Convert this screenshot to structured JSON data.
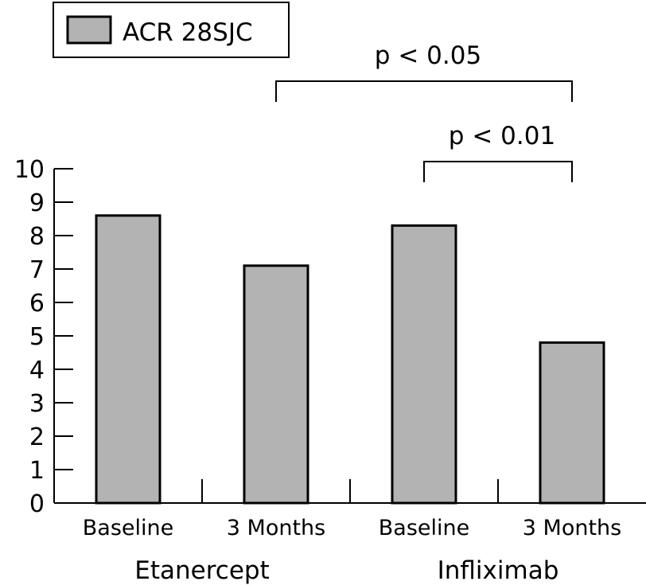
{
  "chart_data": {
    "type": "bar",
    "categories": [
      "Baseline",
      "3 Months",
      "Baseline",
      "3 Months"
    ],
    "groups": [
      {
        "label": "Etanercept",
        "categories": [
          0,
          1
        ]
      },
      {
        "label": "Infliximab",
        "categories": [
          2,
          3
        ]
      }
    ],
    "series": [
      {
        "name": "ACR 28SJC",
        "values": [
          8.6,
          7.1,
          8.3,
          4.8
        ],
        "color": "#b3b3b3"
      }
    ],
    "ylim": [
      0,
      10
    ],
    "yticks": [
      "0",
      "1",
      "2",
      "3",
      "4",
      "5",
      "6",
      "7",
      "8",
      "9",
      "10"
    ],
    "grid": false,
    "legend": {
      "position": "top-left",
      "label": "ACR 28SJC"
    },
    "annotations": [
      {
        "text": "p < 0.05",
        "from": 1,
        "to": 3
      },
      {
        "text": "p < 0.01",
        "from": 2,
        "to": 3
      }
    ]
  }
}
